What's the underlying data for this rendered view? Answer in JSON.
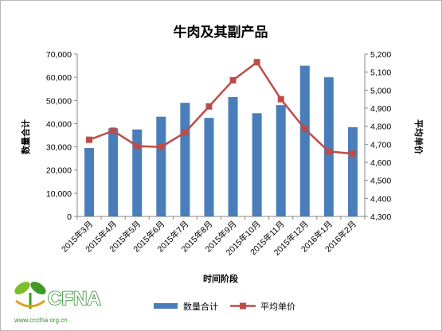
{
  "chart_data": {
    "type": "bar+line",
    "title": "牛肉及其副产品",
    "xlabel": "时间阶段",
    "ylabel_left": "数量合计",
    "ylabel_right": "平均单价",
    "categories": [
      "2015年3月",
      "2015年4月",
      "2015年5月",
      "2015年6月",
      "2015年7月",
      "2015年8月",
      "2015年9月",
      "2015年10月",
      "2015年11月",
      "2015年12月",
      "2016年1月",
      "2016年2月"
    ],
    "y_left": {
      "min": 0,
      "max": 70000,
      "step": 10000,
      "tick_labels": [
        "0",
        "10,000",
        "20,000",
        "30,000",
        "40,000",
        "50,000",
        "60,000",
        "70,000"
      ]
    },
    "y_right": {
      "min": 4300,
      "max": 5200,
      "step": 100,
      "tick_labels": [
        "4,300",
        "4,400",
        "4,500",
        "4,600",
        "4,700",
        "4,800",
        "4,900",
        "5,000",
        "5,100",
        "5,200"
      ]
    },
    "series": [
      {
        "name": "数量合计",
        "type": "bar",
        "axis": "left",
        "color": "#4a7ebb",
        "values": [
          29500,
          38000,
          37500,
          43000,
          49000,
          42500,
          51500,
          44500,
          48000,
          65000,
          60000,
          38500
        ]
      },
      {
        "name": "平均单价",
        "type": "line",
        "axis": "right",
        "color": "#be4b48",
        "values": [
          4725,
          4775,
          4690,
          4685,
          4765,
          4910,
          5055,
          5155,
          4950,
          4785,
          4660,
          4648
        ]
      }
    ],
    "legend": "bottom",
    "grid": false
  },
  "logo": {
    "text": "CFNA",
    "url": "www.cccfna.org.cn"
  }
}
